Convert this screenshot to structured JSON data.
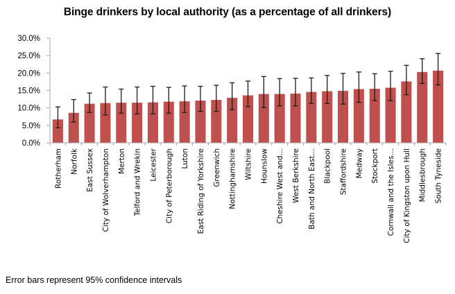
{
  "chart_data": {
    "type": "bar",
    "title": "Binge drinkers by local authority (as a percentage of all drinkers)",
    "xlabel": "",
    "ylabel": "",
    "ylim": [
      0,
      30
    ],
    "yticks": [
      "0.0%",
      "5.0%",
      "10.0%",
      "15.0%",
      "20.0%",
      "25.0%",
      "30.0%"
    ],
    "ytick_values": [
      0,
      5,
      10,
      15,
      20,
      25,
      30
    ],
    "grid": false,
    "legend": "none",
    "bar_color": "#C0504D",
    "error_bar_color": "#1a1a1a",
    "categories": [
      "Rotherham",
      "Norfolk",
      "East Sussex",
      "City of Wolverhampton",
      "Merton",
      "Telford and Wrekin",
      "Leicester",
      "City of Peterborough",
      "Luton",
      "East Riding of Yorkshire",
      "Greenwich",
      "Nottinghamshire",
      "Wiltshire",
      "Hounslow",
      "Cheshire West and…",
      "West Berkshire",
      "Bath and North East…",
      "Blackpool",
      "Staffordshire",
      "Medway",
      "Stockport",
      "Cornwall and the Isles…",
      "City of Kingston upon Hull",
      "Middlesbrough",
      "South Tyneside"
    ],
    "values": [
      6.7,
      8.6,
      11.2,
      11.4,
      11.5,
      11.5,
      11.6,
      11.8,
      11.9,
      12.1,
      12.3,
      12.9,
      13.6,
      14.0,
      14.0,
      14.1,
      14.6,
      14.8,
      14.9,
      15.4,
      15.5,
      15.8,
      17.6,
      20.3,
      20.7
    ],
    "ci_upper": [
      10.3,
      12.4,
      14.3,
      16.0,
      15.4,
      16.0,
      16.2,
      15.9,
      16.3,
      16.2,
      16.5,
      17.2,
      17.7,
      19.0,
      18.4,
      18.5,
      18.6,
      19.3,
      19.9,
      20.3,
      19.8,
      20.5,
      22.2,
      24.1,
      25.6
    ],
    "ci_lower": [
      4.3,
      6.0,
      8.7,
      8.0,
      8.5,
      8.3,
      8.3,
      8.5,
      8.7,
      9.0,
      9.0,
      9.5,
      10.4,
      10.1,
      10.6,
      10.6,
      11.3,
      11.3,
      11.1,
      11.6,
      12.1,
      12.1,
      13.8,
      17.0,
      16.6
    ],
    "footnote": "Error bars represent 95% confidence intervals"
  }
}
